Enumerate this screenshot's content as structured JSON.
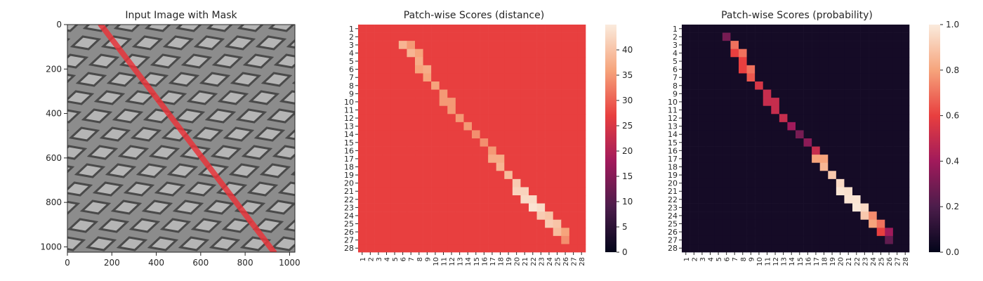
{
  "chart_data": [
    {
      "type": "image",
      "title": "Input Image with Mask",
      "xlim": [
        0,
        1024
      ],
      "ylim": [
        1024,
        0
      ],
      "x_ticks": [
        0,
        200,
        400,
        600,
        800,
        1000
      ],
      "y_ticks": [
        0,
        200,
        400,
        600,
        800,
        1000
      ],
      "mask_line": {
        "from": [
          150,
          0
        ],
        "to": [
          930,
          1024
        ],
        "color": "#e8353b"
      },
      "colors": {
        "background": "#8c8c8c",
        "cell": "#b5b5b5",
        "grid_line": "#4a4a4a"
      }
    },
    {
      "type": "heatmap",
      "title": "Patch-wise Scores (distance)",
      "size": 28,
      "tick_labels": [
        "1",
        "2",
        "3",
        "4",
        "5",
        "6",
        "7",
        "8",
        "9",
        "10",
        "11",
        "12",
        "13",
        "14",
        "15",
        "16",
        "17",
        "18",
        "19",
        "20",
        "21",
        "22",
        "23",
        "24",
        "25",
        "26",
        "27",
        "28"
      ],
      "colorbar": {
        "vmin": 0,
        "vmax": 45,
        "ticks": [
          0,
          5,
          10,
          15,
          20,
          25,
          30,
          35,
          40
        ]
      },
      "colormap": "rocket",
      "background_value": 27,
      "diagonal": [
        {
          "row": 3,
          "col": 6,
          "value": 38
        },
        {
          "row": 3,
          "col": 7,
          "value": 35
        },
        {
          "row": 4,
          "col": 7,
          "value": 38
        },
        {
          "row": 4,
          "col": 8,
          "value": 36
        },
        {
          "row": 5,
          "col": 8,
          "value": 37
        },
        {
          "row": 6,
          "col": 8,
          "value": 36
        },
        {
          "row": 6,
          "col": 9,
          "value": 37
        },
        {
          "row": 7,
          "col": 9,
          "value": 36
        },
        {
          "row": 8,
          "col": 10,
          "value": 36
        },
        {
          "row": 9,
          "col": 11,
          "value": 35
        },
        {
          "row": 10,
          "col": 11,
          "value": 35
        },
        {
          "row": 10,
          "col": 12,
          "value": 35
        },
        {
          "row": 11,
          "col": 12,
          "value": 35
        },
        {
          "row": 12,
          "col": 13,
          "value": 35
        },
        {
          "row": 13,
          "col": 14,
          "value": 35
        },
        {
          "row": 14,
          "col": 15,
          "value": 34
        },
        {
          "row": 15,
          "col": 16,
          "value": 34
        },
        {
          "row": 16,
          "col": 17,
          "value": 35
        },
        {
          "row": 17,
          "col": 17,
          "value": 37
        },
        {
          "row": 17,
          "col": 18,
          "value": 37
        },
        {
          "row": 18,
          "col": 18,
          "value": 38
        },
        {
          "row": 19,
          "col": 19,
          "value": 39
        },
        {
          "row": 20,
          "col": 20,
          "value": 41
        },
        {
          "row": 21,
          "col": 20,
          "value": 42
        },
        {
          "row": 21,
          "col": 21,
          "value": 42
        },
        {
          "row": 22,
          "col": 21,
          "value": 43
        },
        {
          "row": 22,
          "col": 22,
          "value": 43
        },
        {
          "row": 23,
          "col": 22,
          "value": 44
        },
        {
          "row": 23,
          "col": 23,
          "value": 43
        },
        {
          "row": 24,
          "col": 23,
          "value": 41
        },
        {
          "row": 24,
          "col": 24,
          "value": 40
        },
        {
          "row": 25,
          "col": 24,
          "value": 41
        },
        {
          "row": 25,
          "col": 25,
          "value": 40
        },
        {
          "row": 26,
          "col": 25,
          "value": 39
        },
        {
          "row": 26,
          "col": 26,
          "value": 36
        },
        {
          "row": 27,
          "col": 26,
          "value": 34
        }
      ]
    },
    {
      "type": "heatmap",
      "title": "Patch-wise Scores (probability)",
      "size": 28,
      "tick_labels": [
        "1",
        "2",
        "3",
        "4",
        "5",
        "6",
        "7",
        "8",
        "9",
        "10",
        "11",
        "12",
        "13",
        "14",
        "15",
        "16",
        "17",
        "18",
        "19",
        "20",
        "21",
        "22",
        "23",
        "24",
        "25",
        "26",
        "27",
        "28"
      ],
      "colorbar": {
        "vmin": 0.0,
        "vmax": 1.0,
        "ticks": [
          "0.0",
          "0.2",
          "0.4",
          "0.6",
          "0.8",
          "1.0"
        ]
      },
      "colormap": "rocket",
      "background_value": 0.05,
      "diagonal": [
        {
          "row": 2,
          "col": 6,
          "value": 0.3
        },
        {
          "row": 3,
          "col": 7,
          "value": 0.7
        },
        {
          "row": 4,
          "col": 7,
          "value": 0.6
        },
        {
          "row": 4,
          "col": 8,
          "value": 0.7
        },
        {
          "row": 5,
          "col": 8,
          "value": 0.6
        },
        {
          "row": 6,
          "col": 8,
          "value": 0.6
        },
        {
          "row": 6,
          "col": 9,
          "value": 0.7
        },
        {
          "row": 7,
          "col": 9,
          "value": 0.65
        },
        {
          "row": 8,
          "col": 10,
          "value": 0.55
        },
        {
          "row": 9,
          "col": 11,
          "value": 0.5
        },
        {
          "row": 10,
          "col": 11,
          "value": 0.5
        },
        {
          "row": 10,
          "col": 12,
          "value": 0.5
        },
        {
          "row": 11,
          "col": 12,
          "value": 0.5
        },
        {
          "row": 12,
          "col": 13,
          "value": 0.5
        },
        {
          "row": 13,
          "col": 14,
          "value": 0.4
        },
        {
          "row": 14,
          "col": 15,
          "value": 0.3
        },
        {
          "row": 15,
          "col": 16,
          "value": 0.35
        },
        {
          "row": 16,
          "col": 17,
          "value": 0.5
        },
        {
          "row": 17,
          "col": 17,
          "value": 0.8
        },
        {
          "row": 17,
          "col": 18,
          "value": 0.8
        },
        {
          "row": 18,
          "col": 18,
          "value": 0.85
        },
        {
          "row": 19,
          "col": 19,
          "value": 0.9
        },
        {
          "row": 20,
          "col": 20,
          "value": 0.95
        },
        {
          "row": 21,
          "col": 20,
          "value": 0.98
        },
        {
          "row": 21,
          "col": 21,
          "value": 0.97
        },
        {
          "row": 22,
          "col": 21,
          "value": 0.98
        },
        {
          "row": 22,
          "col": 22,
          "value": 0.98
        },
        {
          "row": 23,
          "col": 22,
          "value": 0.99
        },
        {
          "row": 23,
          "col": 23,
          "value": 0.95
        },
        {
          "row": 24,
          "col": 23,
          "value": 0.9
        },
        {
          "row": 24,
          "col": 24,
          "value": 0.75
        },
        {
          "row": 25,
          "col": 24,
          "value": 0.8
        },
        {
          "row": 25,
          "col": 25,
          "value": 0.7
        },
        {
          "row": 26,
          "col": 25,
          "value": 0.6
        },
        {
          "row": 26,
          "col": 26,
          "value": 0.4
        },
        {
          "row": 27,
          "col": 26,
          "value": 0.25
        }
      ]
    }
  ]
}
